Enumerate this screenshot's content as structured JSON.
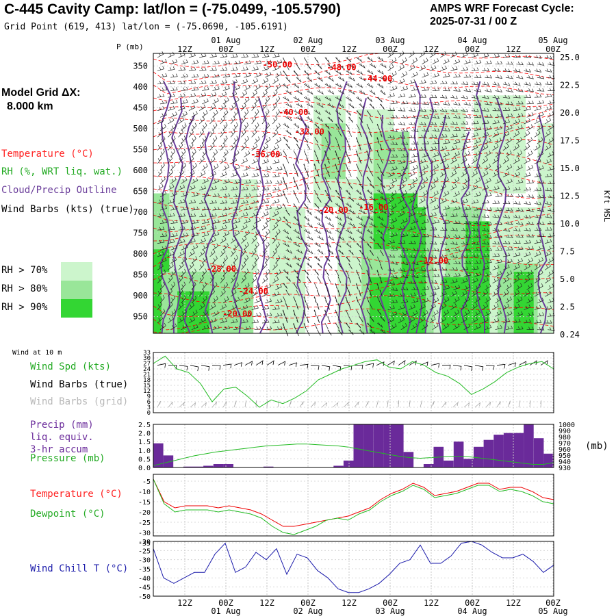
{
  "header": {
    "title": "C-445 Cavity Camp:  lat/lon = (-75.0499, -105.5790)",
    "subtitle": "Grid Point (619, 413) lat/lon = (-75.0690, -105.6191)",
    "cycle_line1": "AMPS WRF Forecast Cycle:",
    "cycle_line2": "2025-07-31 / 00  Z"
  },
  "left_legend": {
    "model_grid_line1": "Model Grid ΔX:",
    "model_grid_line2": "8.000 km",
    "temperature": "Temperature (°C)",
    "rh": "RH (%, WRT liq. wat.)",
    "cloud": "Cloud/Precip Outline",
    "wind": "Wind Barbs (kts) (true)",
    "rh70": "RH > 70%",
    "rh80": "RH > 80%",
    "rh90": "RH > 90%"
  },
  "colors": {
    "rh70": "#ccf5cc",
    "rh80": "#99e699",
    "rh90": "#33d633",
    "temperature": "#ff0000",
    "cloud": "#6a3d9a",
    "precip": "#6a2a9a",
    "pressure": "#22bb22",
    "wind_chill": "#1a1aaa"
  },
  "time_axis": {
    "hours": [
      "12Z",
      "00Z",
      "12Z",
      "00Z",
      "12Z",
      "00Z",
      "12Z",
      "00Z",
      "12Z",
      "00Z"
    ],
    "dates": [
      "01 Aug",
      "02 Aug",
      "03 Aug",
      "04 Aug",
      "05 Aug"
    ]
  },
  "chart_data": [
    {
      "type": "heatmap",
      "panel": "cross-section",
      "ylabel_left": "P (mb)",
      "ylabel_right": "Kft MSL",
      "pressure_ticks": [
        "350",
        "400",
        "450",
        "500",
        "550",
        "600",
        "650",
        "700",
        "750",
        "800",
        "850",
        "900",
        "950"
      ],
      "height_ticks": [
        "25.0",
        "22.5",
        "20.0",
        "17.5",
        "15.0",
        "12.5",
        "10.0",
        "7.5",
        "5.0",
        "2.5",
        "0.24"
      ],
      "temperature_labels": [
        "-50.00",
        "-48.00",
        "-44.00",
        "-40.00",
        "-32.00",
        "-36.00",
        "-20.00",
        "-16.00",
        "-12.00",
        "-28.00",
        "-24.00",
        "-20.00"
      ]
    },
    {
      "type": "line",
      "panel": "wind",
      "title": "Wind at 10 m",
      "legend": [
        "Wind Spd (kts)",
        "Wind Barbs (true)",
        "Wind Barbs (grid)"
      ],
      "yticks": [
        "33",
        "30",
        "27",
        "24",
        "21",
        "18",
        "15",
        "12",
        "9",
        "6",
        "3",
        "0"
      ],
      "ylim": [
        0,
        33
      ],
      "series": [
        {
          "name": "Wind Spd (kts)",
          "values": [
            27,
            31,
            24,
            22,
            16,
            6,
            13,
            14,
            9,
            3,
            7,
            5,
            8,
            12,
            18,
            21,
            24,
            26,
            28,
            29,
            25,
            24,
            28,
            26,
            22,
            20,
            16,
            10,
            13,
            17,
            22,
            25,
            27,
            28,
            24
          ]
        }
      ]
    },
    {
      "type": "bar",
      "panel": "precip",
      "legend": [
        "Precip (mm)",
        "liq. equiv.",
        "3-hr accum",
        "Pressure (mb)"
      ],
      "yticks_left": [
        "2.5",
        "2.0",
        "1.5",
        "1.0",
        "0.5",
        "0.0"
      ],
      "yticks_right": [
        "1000",
        "990",
        "980",
        "970",
        "960",
        "950",
        "940",
        "930"
      ],
      "unit_right": "(mb)",
      "ylim": [
        0,
        2.5
      ],
      "ylim_right": [
        930,
        1000
      ],
      "values": [
        1.4,
        0.7,
        0,
        0.05,
        0.05,
        0.1,
        0.2,
        0.2,
        0,
        0,
        0,
        0.05,
        0,
        0,
        0,
        0,
        0,
        0,
        0.1,
        0.4,
        2.5,
        2.5,
        2.5,
        2.5,
        2.5,
        0.9,
        0,
        0.2,
        1.2,
        0.4,
        1.5,
        0.5,
        1.2,
        1.6,
        1.9,
        2.0,
        2.0,
        2.5,
        1.7,
        0.8
      ],
      "pressure": [
        933,
        937,
        941,
        945,
        949,
        952,
        955,
        957,
        959,
        961,
        963,
        965,
        966,
        967,
        968,
        968,
        967,
        966,
        965,
        963,
        960,
        957,
        954,
        951,
        948,
        946,
        945,
        946,
        947,
        948,
        948,
        947,
        945,
        943,
        941,
        939,
        937,
        935,
        935,
        938
      ]
    },
    {
      "type": "line",
      "panel": "temperature",
      "legend": [
        "Temperature (°C)",
        "Dewpoint (°C)"
      ],
      "yticks": [
        "-5",
        "-10",
        "-15",
        "-20",
        "-25",
        "-30",
        "-35"
      ],
      "ylim": [
        -35,
        -5
      ],
      "series": [
        {
          "name": "Temperature (°C)",
          "values": [
            -4,
            -15,
            -18,
            -17,
            -17,
            -17,
            -18,
            -17,
            -18,
            -19,
            -21,
            -24,
            -27,
            -27,
            -26,
            -25,
            -24,
            -23,
            -22,
            -20,
            -18,
            -14,
            -11,
            -9,
            -6,
            -8,
            -12,
            -11,
            -10,
            -8,
            -6,
            -6,
            -9,
            -8,
            -8,
            -10,
            -13,
            -14
          ]
        },
        {
          "name": "Dewpoint (°C)",
          "values": [
            -4,
            -16,
            -20,
            -19,
            -19,
            -19,
            -20,
            -19,
            -20,
            -21,
            -23,
            -27,
            -30,
            -31,
            -29,
            -27,
            -24,
            -23,
            -24,
            -21,
            -19,
            -15,
            -12,
            -10,
            -7,
            -9,
            -13,
            -12,
            -11,
            -9,
            -7,
            -7,
            -10,
            -9,
            -10,
            -12,
            -15,
            -16
          ]
        }
      ]
    },
    {
      "type": "line",
      "panel": "wind-chill",
      "legend": [
        "Wind Chill T (°C)"
      ],
      "yticks": [
        "-20",
        "-25",
        "-30",
        "-35",
        "-40",
        "-45",
        "-50"
      ],
      "ylim": [
        -50,
        -20
      ],
      "series": [
        {
          "name": "Wind Chill T (°C)",
          "values": [
            -24,
            -40,
            -43,
            -40,
            -37,
            -37,
            -27,
            -21,
            -37,
            -34,
            -26,
            -30,
            -24,
            -38,
            -27,
            -29,
            -36,
            -40,
            -46,
            -48,
            -48,
            -46,
            -43,
            -38,
            -32,
            -30,
            -22,
            -32,
            -32,
            -28,
            -21,
            -20,
            -22,
            -26,
            -29,
            -29,
            -27,
            -31,
            -37,
            -33
          ]
        }
      ]
    }
  ]
}
